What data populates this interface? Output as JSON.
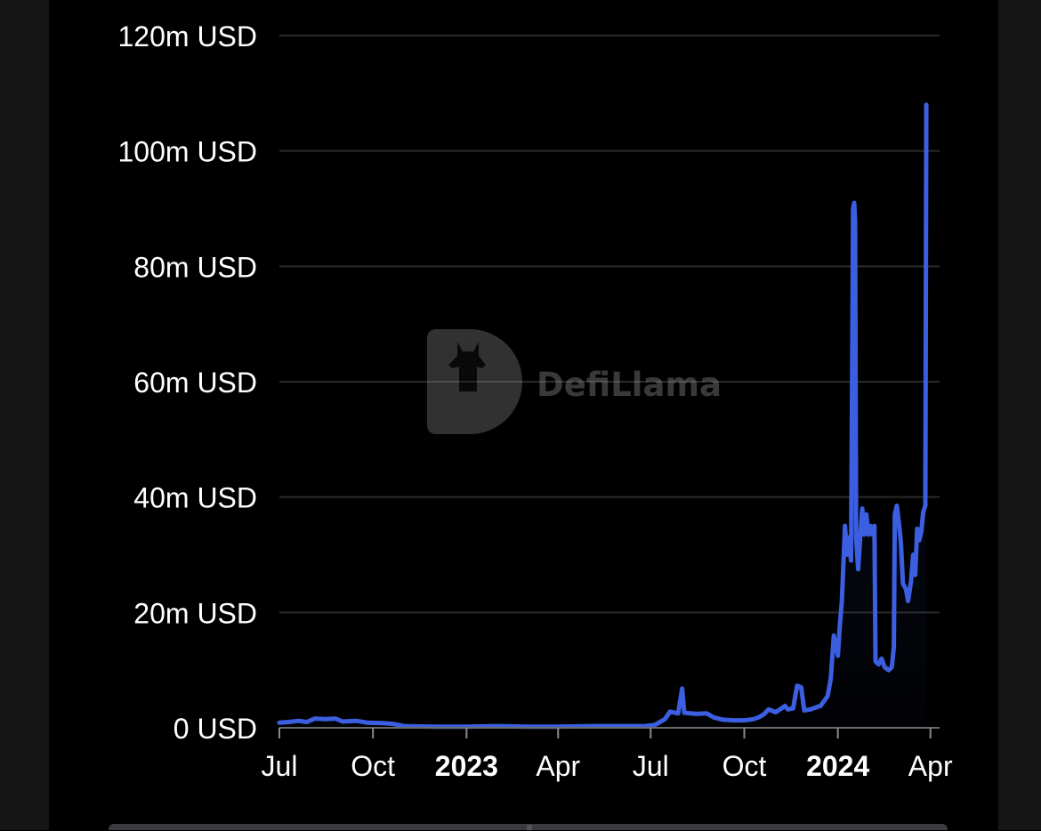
{
  "chart_data": {
    "type": "area",
    "title": "",
    "xlabel": "",
    "ylabel": "",
    "y_unit": "USD",
    "ylim": [
      0,
      120
    ],
    "y_ticks": [
      {
        "value": 0,
        "label": "0 USD"
      },
      {
        "value": 20,
        "label": "20m USD"
      },
      {
        "value": 40,
        "label": "40m USD"
      },
      {
        "value": 60,
        "label": "60m USD"
      },
      {
        "value": 80,
        "label": "80m USD"
      },
      {
        "value": 100,
        "label": "100m USD"
      },
      {
        "value": 120,
        "label": "120m USD"
      }
    ],
    "x_ticks": [
      {
        "date": "2022-07-01",
        "label": "Jul",
        "bold": false
      },
      {
        "date": "2022-10-01",
        "label": "Oct",
        "bold": false
      },
      {
        "date": "2023-01-01",
        "label": "2023",
        "bold": true
      },
      {
        "date": "2023-04-01",
        "label": "Apr",
        "bold": false
      },
      {
        "date": "2023-07-01",
        "label": "Jul",
        "bold": false
      },
      {
        "date": "2023-10-01",
        "label": "Oct",
        "bold": false
      },
      {
        "date": "2024-01-01",
        "label": "2024",
        "bold": true
      },
      {
        "date": "2024-04-01",
        "label": "Apr",
        "bold": false
      }
    ],
    "xlim": [
      "2022-07-01",
      "2024-04-10"
    ],
    "grid": true,
    "legend": "none",
    "series": [
      {
        "color": "#3b5fe0",
        "points": [
          [
            "2022-07-01",
            0.9
          ],
          [
            "2022-07-10",
            1.0
          ],
          [
            "2022-07-20",
            1.2
          ],
          [
            "2022-07-28",
            1.0
          ],
          [
            "2022-08-05",
            1.6
          ],
          [
            "2022-08-15",
            1.5
          ],
          [
            "2022-08-25",
            1.6
          ],
          [
            "2022-09-01",
            1.1
          ],
          [
            "2022-09-15",
            1.2
          ],
          [
            "2022-09-25",
            0.9
          ],
          [
            "2022-10-10",
            0.8
          ],
          [
            "2022-10-20",
            0.7
          ],
          [
            "2022-11-01",
            0.3
          ],
          [
            "2022-12-01",
            0.2
          ],
          [
            "2023-01-01",
            0.2
          ],
          [
            "2023-02-01",
            0.3
          ],
          [
            "2023-03-01",
            0.2
          ],
          [
            "2023-04-01",
            0.2
          ],
          [
            "2023-05-01",
            0.3
          ],
          [
            "2023-06-01",
            0.3
          ],
          [
            "2023-06-25",
            0.3
          ],
          [
            "2023-07-05",
            0.5
          ],
          [
            "2023-07-15",
            1.5
          ],
          [
            "2023-07-20",
            2.8
          ],
          [
            "2023-07-28",
            2.5
          ],
          [
            "2023-08-01",
            6.8
          ],
          [
            "2023-08-03",
            2.6
          ],
          [
            "2023-08-15",
            2.4
          ],
          [
            "2023-08-25",
            2.5
          ],
          [
            "2023-09-01",
            1.8
          ],
          [
            "2023-09-10",
            1.4
          ],
          [
            "2023-09-20",
            1.3
          ],
          [
            "2023-10-01",
            1.3
          ],
          [
            "2023-10-10",
            1.5
          ],
          [
            "2023-10-15",
            1.8
          ],
          [
            "2023-10-20",
            2.3
          ],
          [
            "2023-10-25",
            3.2
          ],
          [
            "2023-11-01",
            2.7
          ],
          [
            "2023-11-10",
            3.8
          ],
          [
            "2023-11-13",
            3.2
          ],
          [
            "2023-11-18",
            3.4
          ],
          [
            "2023-11-22",
            7.3
          ],
          [
            "2023-11-26",
            7.0
          ],
          [
            "2023-11-29",
            3.0
          ],
          [
            "2023-12-05",
            3.2
          ],
          [
            "2023-12-15",
            3.8
          ],
          [
            "2023-12-22",
            5.5
          ],
          [
            "2023-12-25",
            8.5
          ],
          [
            "2023-12-28",
            16.0
          ],
          [
            "2024-01-01",
            12.5
          ],
          [
            "2024-01-03",
            18.0
          ],
          [
            "2024-01-05",
            22.0
          ],
          [
            "2024-01-08",
            35.0
          ],
          [
            "2024-01-10",
            30.0
          ],
          [
            "2024-01-12",
            33.0
          ],
          [
            "2024-01-14",
            29.0
          ],
          [
            "2024-01-16",
            90.0
          ],
          [
            "2024-01-17",
            91.0
          ],
          [
            "2024-01-18",
            88.0
          ],
          [
            "2024-01-19",
            33.0
          ],
          [
            "2024-01-21",
            27.5
          ],
          [
            "2024-01-23",
            33.0
          ],
          [
            "2024-01-25",
            38.0
          ],
          [
            "2024-01-27",
            33.5
          ],
          [
            "2024-01-29",
            37.0
          ],
          [
            "2024-01-31",
            33.5
          ],
          [
            "2024-02-02",
            35.0
          ],
          [
            "2024-02-04",
            33.5
          ],
          [
            "2024-02-06",
            35.0
          ],
          [
            "2024-02-07",
            11.5
          ],
          [
            "2024-02-10",
            11.0
          ],
          [
            "2024-02-13",
            12.0
          ],
          [
            "2024-02-16",
            10.5
          ],
          [
            "2024-02-20",
            10.0
          ],
          [
            "2024-02-23",
            10.5
          ],
          [
            "2024-02-25",
            14.0
          ],
          [
            "2024-02-26",
            37.0
          ],
          [
            "2024-02-28",
            38.5
          ],
          [
            "2024-03-01",
            35.5
          ],
          [
            "2024-03-03",
            32.0
          ],
          [
            "2024-03-05",
            25.0
          ],
          [
            "2024-03-08",
            24.0
          ],
          [
            "2024-03-10",
            22.0
          ],
          [
            "2024-03-13",
            25.5
          ],
          [
            "2024-03-15",
            30.0
          ],
          [
            "2024-03-17",
            26.5
          ],
          [
            "2024-03-19",
            34.5
          ],
          [
            "2024-03-21",
            32.5
          ],
          [
            "2024-03-23",
            34.0
          ],
          [
            "2024-03-25",
            37.5
          ],
          [
            "2024-03-27",
            38.5
          ],
          [
            "2024-03-28",
            108.0
          ]
        ]
      }
    ],
    "watermark": {
      "label": "DefiLlama"
    }
  }
}
